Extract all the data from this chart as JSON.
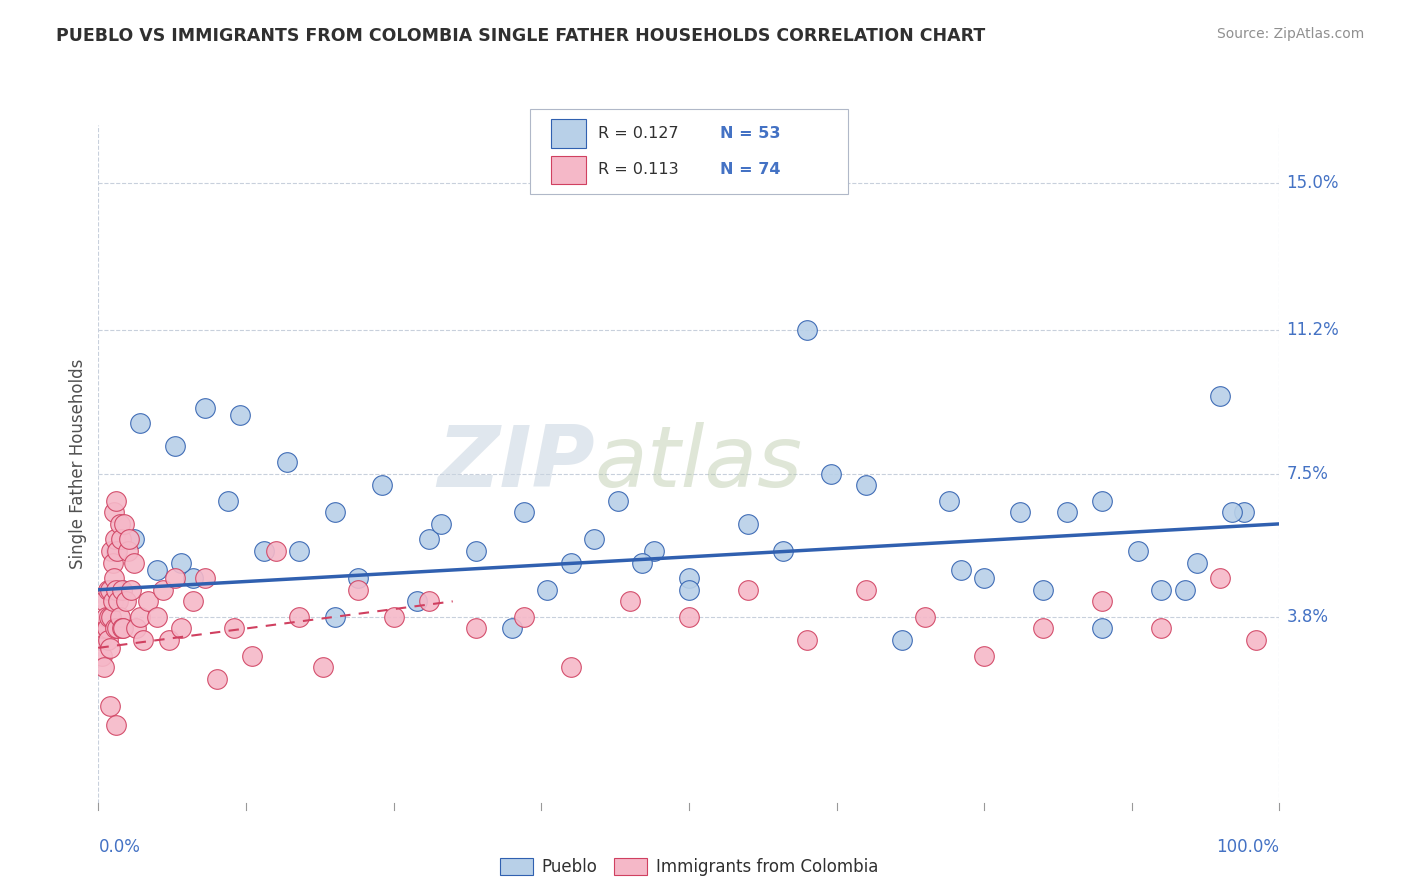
{
  "title": "PUEBLO VS IMMIGRANTS FROM COLOMBIA SINGLE FATHER HOUSEHOLDS CORRELATION CHART",
  "source": "Source: ZipAtlas.com",
  "ylabel": "Single Father Households",
  "xlim": [
    0,
    100
  ],
  "ylim": [
    -1.0,
    16.5
  ],
  "yticks": [
    0,
    3.8,
    7.5,
    11.2,
    15.0
  ],
  "ytick_labels": [
    "",
    "3.8%",
    "7.5%",
    "11.2%",
    "15.0%"
  ],
  "legend_r1": "R = 0.127",
  "legend_n1": "N = 53",
  "legend_r2": "R = 0.113",
  "legend_n2": "N = 74",
  "color_pueblo": "#b8d0e8",
  "color_colombia": "#f5b8c8",
  "color_line_pueblo": "#3060b0",
  "color_line_colombia": "#d04060",
  "color_tick_label": "#4472c4",
  "color_source": "#909090",
  "watermark_zip": "ZIP",
  "watermark_atlas": "atlas",
  "pueblo_x": [
    1.5,
    3.5,
    6.5,
    9.0,
    12.0,
    16.0,
    20.0,
    24.0,
    28.0,
    32.0,
    36.0,
    40.0,
    44.0,
    47.0,
    50.0,
    55.0,
    58.0,
    62.0,
    65.0,
    68.0,
    72.0,
    75.0,
    78.0,
    82.0,
    85.0,
    88.0,
    90.0,
    93.0,
    95.0,
    97.0,
    73.0,
    80.0,
    85.0,
    92.0,
    96.0,
    60.0,
    50.0,
    42.0,
    35.0,
    27.0,
    20.0,
    14.0,
    8.0,
    5.0,
    3.0,
    2.0,
    7.0,
    11.0,
    17.0,
    22.0,
    29.0,
    38.0,
    46.0
  ],
  "pueblo_y": [
    5.5,
    8.8,
    8.2,
    9.2,
    9.0,
    7.8,
    6.5,
    7.2,
    5.8,
    5.5,
    6.5,
    5.2,
    6.8,
    5.5,
    4.8,
    6.2,
    5.5,
    7.5,
    7.2,
    3.2,
    6.8,
    4.8,
    6.5,
    6.5,
    6.8,
    5.5,
    4.5,
    5.2,
    9.5,
    6.5,
    5.0,
    4.5,
    3.5,
    4.5,
    6.5,
    11.2,
    4.5,
    5.8,
    3.5,
    4.2,
    3.8,
    5.5,
    4.8,
    5.0,
    5.8,
    4.5,
    5.2,
    6.8,
    5.5,
    4.8,
    6.2,
    4.5,
    5.2
  ],
  "colombia_x": [
    0.2,
    0.3,
    0.4,
    0.5,
    0.5,
    0.6,
    0.7,
    0.8,
    0.8,
    0.9,
    1.0,
    1.0,
    1.1,
    1.1,
    1.2,
    1.2,
    1.3,
    1.3,
    1.4,
    1.4,
    1.5,
    1.5,
    1.6,
    1.6,
    1.7,
    1.8,
    1.8,
    1.9,
    2.0,
    2.0,
    2.1,
    2.2,
    2.3,
    2.5,
    2.6,
    2.8,
    3.0,
    3.2,
    3.5,
    3.8,
    4.2,
    5.0,
    5.5,
    6.0,
    6.5,
    7.0,
    8.0,
    9.0,
    10.0,
    11.5,
    13.0,
    15.0,
    17.0,
    19.0,
    22.0,
    25.0,
    28.0,
    32.0,
    36.0,
    40.0,
    45.0,
    50.0,
    55.0,
    60.0,
    65.0,
    70.0,
    75.0,
    80.0,
    85.0,
    90.0,
    95.0,
    98.0,
    1.0,
    1.5
  ],
  "colombia_y": [
    3.2,
    2.8,
    3.5,
    4.2,
    2.5,
    3.8,
    3.5,
    4.5,
    3.2,
    3.8,
    4.5,
    3.0,
    5.5,
    3.8,
    5.2,
    4.2,
    6.5,
    4.8,
    5.8,
    3.5,
    6.8,
    4.5,
    5.5,
    3.5,
    4.2,
    6.2,
    3.8,
    5.8,
    4.5,
    3.5,
    3.5,
    6.2,
    4.2,
    5.5,
    5.8,
    4.5,
    5.2,
    3.5,
    3.8,
    3.2,
    4.2,
    3.8,
    4.5,
    3.2,
    4.8,
    3.5,
    4.2,
    4.8,
    2.2,
    3.5,
    2.8,
    5.5,
    3.8,
    2.5,
    4.5,
    3.8,
    4.2,
    3.5,
    3.8,
    2.5,
    4.2,
    3.8,
    4.5,
    3.2,
    4.5,
    3.8,
    2.8,
    3.5,
    4.2,
    3.5,
    4.8,
    3.2,
    1.5,
    1.0
  ],
  "pueblo_trend_x": [
    0,
    100
  ],
  "pueblo_trend_y": [
    4.5,
    6.2
  ],
  "colombia_trend_x": [
    0,
    30
  ],
  "colombia_trend_y": [
    3.0,
    4.2
  ]
}
